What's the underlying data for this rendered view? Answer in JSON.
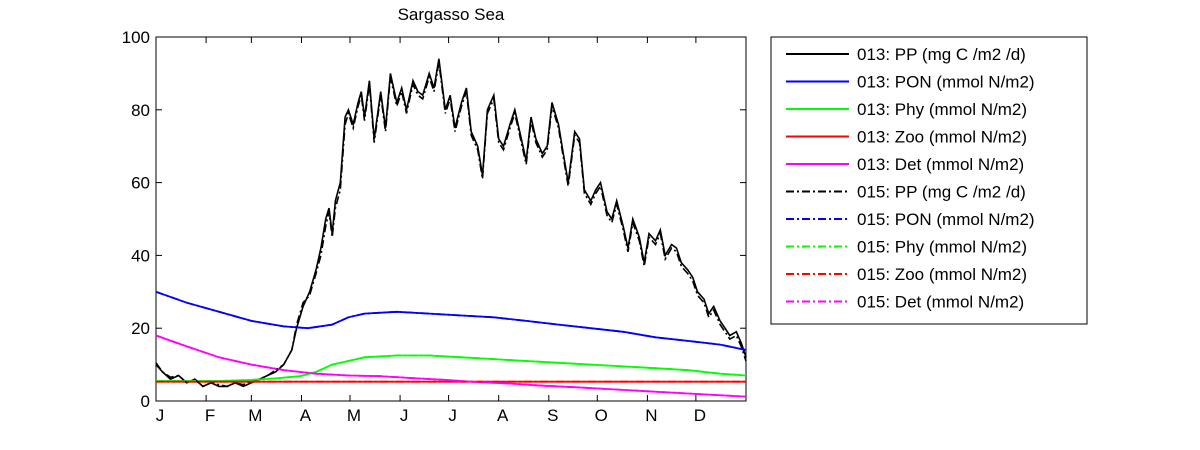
{
  "chart_data": {
    "type": "line",
    "title": "Sargasso Sea",
    "xlabel": "",
    "ylabel": "",
    "ylim": [
      0,
      100
    ],
    "xlim": [
      1,
      366
    ],
    "yticks": [
      0,
      20,
      40,
      60,
      80,
      100
    ],
    "month_ticks": [
      {
        "label": "J",
        "day": 1
      },
      {
        "label": "F",
        "day": 32
      },
      {
        "label": "M",
        "day": 60
      },
      {
        "label": "A",
        "day": 91
      },
      {
        "label": "M",
        "day": 121
      },
      {
        "label": "J",
        "day": 152
      },
      {
        "label": "J",
        "day": 182
      },
      {
        "label": "A",
        "day": 213
      },
      {
        "label": "S",
        "day": 244
      },
      {
        "label": "O",
        "day": 274
      },
      {
        "label": "N",
        "day": 305
      },
      {
        "label": "D",
        "day": 335
      }
    ],
    "legend_position": "outside-right",
    "grid": false,
    "series": [
      {
        "name": "013: PP (mg C /m2 /d)",
        "color": "#000000",
        "style": "solid",
        "x": [
          1,
          5,
          10,
          15,
          20,
          25,
          30,
          35,
          40,
          45,
          50,
          55,
          60,
          65,
          70,
          75,
          80,
          85,
          88,
          92,
          96,
          100,
          103,
          106,
          108,
          110,
          112,
          115,
          118,
          120,
          123,
          126,
          128,
          130,
          133,
          136,
          140,
          143,
          146,
          150,
          153,
          156,
          160,
          163,
          166,
          170,
          173,
          176,
          180,
          183,
          186,
          190,
          193,
          196,
          200,
          203,
          206,
          210,
          213,
          216,
          220,
          223,
          226,
          230,
          233,
          236,
          240,
          243,
          246,
          250,
          253,
          256,
          260,
          263,
          266,
          270,
          273,
          276,
          280,
          283,
          286,
          290,
          293,
          296,
          300,
          303,
          306,
          310,
          313,
          316,
          320,
          323,
          326,
          330,
          333,
          336,
          340,
          343,
          346,
          350,
          353,
          356,
          360,
          363,
          366
        ],
        "values": [
          10,
          8,
          6,
          7,
          5,
          6,
          4,
          5,
          4,
          4,
          5,
          4,
          5,
          6,
          7,
          8,
          10,
          14,
          20,
          26,
          30,
          36,
          42,
          50,
          53,
          46,
          55,
          60,
          78,
          80,
          76,
          82,
          85,
          78,
          88,
          72,
          85,
          75,
          90,
          82,
          86,
          80,
          88,
          85,
          84,
          90,
          86,
          94,
          80,
          84,
          75,
          82,
          86,
          74,
          70,
          62,
          80,
          84,
          72,
          70,
          76,
          80,
          74,
          66,
          78,
          72,
          68,
          70,
          82,
          76,
          68,
          60,
          74,
          72,
          58,
          55,
          58,
          60,
          52,
          50,
          55,
          48,
          42,
          50,
          45,
          38,
          46,
          44,
          47,
          40,
          43,
          42,
          38,
          36,
          34,
          30,
          28,
          24,
          26,
          22,
          20,
          18,
          19,
          16,
          12
        ]
      },
      {
        "name": "013: PON (mmol N/m2)",
        "color": "#0000ff",
        "style": "solid",
        "x": [
          1,
          20,
          40,
          60,
          80,
          95,
          110,
          120,
          130,
          150,
          170,
          190,
          210,
          230,
          250,
          270,
          290,
          310,
          330,
          350,
          366
        ],
        "values": [
          30,
          27,
          24.5,
          22,
          20.5,
          20,
          21,
          23,
          24,
          24.5,
          24,
          23.5,
          23,
          22,
          21,
          20,
          19,
          17.5,
          16.5,
          15.5,
          14
        ]
      },
      {
        "name": "013: Phy (mmol N/m2)",
        "color": "#00ff00",
        "style": "solid",
        "x": [
          1,
          20,
          40,
          60,
          75,
          90,
          100,
          110,
          120,
          130,
          150,
          170,
          190,
          210,
          230,
          250,
          270,
          290,
          310,
          330,
          350,
          366
        ],
        "values": [
          5.5,
          5.5,
          5.5,
          5.8,
          6.2,
          6.8,
          8,
          10,
          11,
          12,
          12.5,
          12.5,
          12,
          11.5,
          11,
          10.5,
          10,
          9.5,
          9,
          8.5,
          7.5,
          7
        ]
      },
      {
        "name": "013: Zoo (mmol N/m2)",
        "color": "#ff0000",
        "style": "solid",
        "x": [
          1,
          366
        ],
        "values": [
          5.3,
          5.3
        ]
      },
      {
        "name": "013: Det (mmol N/m2)",
        "color": "#ff00ff",
        "style": "solid",
        "x": [
          1,
          20,
          40,
          60,
          80,
          100,
          120,
          140,
          160,
          180,
          200,
          220,
          240,
          260,
          280,
          300,
          320,
          340,
          366
        ],
        "values": [
          18,
          15,
          12,
          10,
          8.5,
          7.5,
          7,
          6.8,
          6.3,
          5.8,
          5.2,
          4.8,
          4.2,
          3.8,
          3.3,
          2.8,
          2.3,
          1.8,
          1.2
        ]
      },
      {
        "name": "015: PP (mg C /m2 /d)",
        "color": "#000000",
        "style": "dashdot",
        "x": [
          1,
          5,
          10,
          15,
          20,
          25,
          30,
          35,
          40,
          45,
          50,
          55,
          60,
          65,
          70,
          75,
          80,
          85,
          88,
          92,
          96,
          100,
          103,
          106,
          108,
          110,
          112,
          115,
          118,
          120,
          123,
          126,
          128,
          130,
          133,
          136,
          140,
          143,
          146,
          150,
          153,
          156,
          160,
          163,
          166,
          170,
          173,
          176,
          180,
          183,
          186,
          190,
          193,
          196,
          200,
          203,
          206,
          210,
          213,
          216,
          220,
          223,
          226,
          230,
          233,
          236,
          240,
          243,
          246,
          250,
          253,
          256,
          260,
          263,
          266,
          270,
          273,
          276,
          280,
          283,
          286,
          290,
          293,
          296,
          300,
          303,
          306,
          310,
          313,
          316,
          320,
          323,
          326,
          330,
          333,
          336,
          340,
          343,
          346,
          350,
          353,
          356,
          360,
          363,
          366
        ],
        "values": [
          10.5,
          8,
          6.5,
          7,
          5,
          6,
          4,
          5,
          4.5,
          4,
          5,
          4.5,
          5.5,
          6,
          7,
          8.5,
          10,
          14,
          21,
          27,
          29,
          35,
          40,
          48,
          52,
          45,
          53,
          58,
          76,
          79,
          75,
          81,
          84,
          77,
          87,
          71,
          84,
          74,
          89,
          81,
          85,
          79,
          87,
          84,
          83,
          89,
          85,
          93,
          79,
          83,
          74,
          81,
          85,
          73,
          69,
          61,
          79,
          83,
          71,
          69,
          75,
          79,
          73,
          65,
          77,
          71,
          67,
          69,
          81,
          75,
          67,
          59,
          73,
          71,
          57,
          54,
          57,
          59,
          51,
          49,
          54,
          47,
          41,
          49,
          44,
          37,
          45,
          43,
          46,
          39,
          42,
          41,
          37,
          35,
          33,
          29,
          27,
          23,
          25,
          21,
          19,
          17,
          18,
          15,
          11
        ]
      },
      {
        "name": "015: PON (mmol N/m2)",
        "color": "#0000ff",
        "style": "dashdot",
        "x": [
          1,
          20,
          40,
          60,
          80,
          95,
          110,
          120,
          130,
          150,
          170,
          190,
          210,
          230,
          250,
          270,
          290,
          310,
          330,
          350,
          366
        ],
        "values": [
          30,
          27,
          24.5,
          22,
          20.5,
          20,
          21,
          23,
          24,
          24.5,
          24,
          23.5,
          23,
          22,
          21,
          20,
          19,
          17.5,
          16.5,
          15.5,
          14
        ]
      },
      {
        "name": "015: Phy (mmol N/m2)",
        "color": "#00ff00",
        "style": "dashdot",
        "x": [
          1,
          20,
          40,
          60,
          75,
          90,
          100,
          110,
          120,
          130,
          150,
          170,
          190,
          210,
          230,
          250,
          270,
          290,
          310,
          330,
          350,
          366
        ],
        "values": [
          5.5,
          5.5,
          5.5,
          5.8,
          6.2,
          6.8,
          8,
          10,
          11,
          12,
          12.5,
          12.5,
          12,
          11.5,
          11,
          10.5,
          10,
          9.5,
          9,
          8.5,
          7.5,
          7
        ]
      },
      {
        "name": "015: Zoo (mmol N/m2)",
        "color": "#ff0000",
        "style": "dashdot",
        "x": [
          1,
          366
        ],
        "values": [
          5.3,
          5.3
        ]
      },
      {
        "name": "015: Det (mmol N/m2)",
        "color": "#ff00ff",
        "style": "dashdot",
        "x": [
          1,
          20,
          40,
          60,
          80,
          100,
          120,
          140,
          160,
          180,
          200,
          220,
          240,
          260,
          280,
          300,
          320,
          340,
          366
        ],
        "values": [
          18,
          15,
          12,
          10,
          8.5,
          7.5,
          7,
          6.8,
          6.3,
          5.8,
          5.2,
          4.8,
          4.2,
          3.8,
          3.3,
          2.8,
          2.3,
          1.8,
          1.2
        ]
      }
    ]
  }
}
